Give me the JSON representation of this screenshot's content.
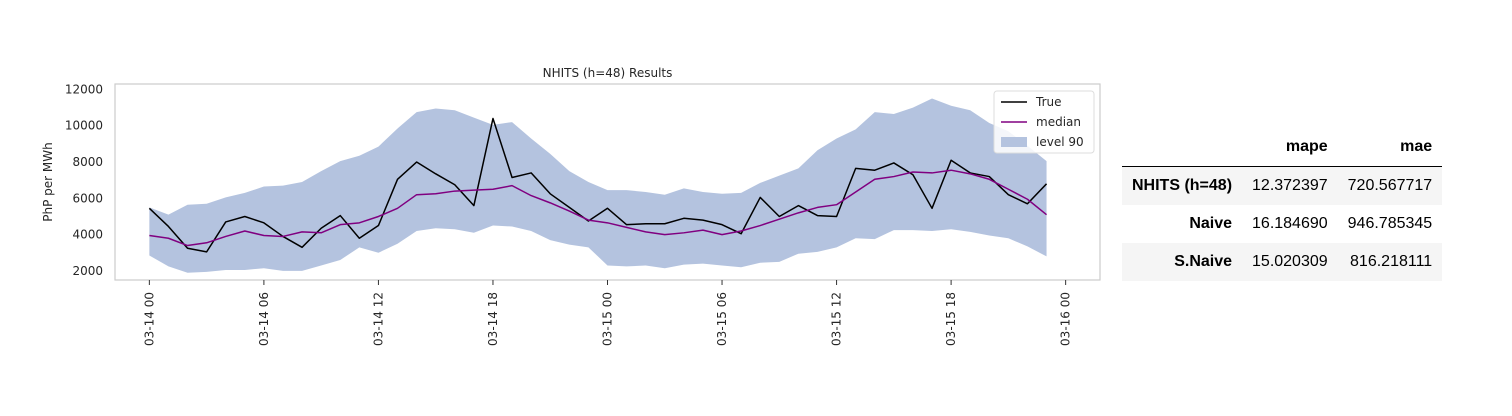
{
  "chart_data": {
    "type": "line",
    "title": "NHITS (h=48) Results",
    "ylabel": "PhP per MWh",
    "xlabel": "",
    "ylim": [
      1500,
      12300
    ],
    "xlim": [
      -1.8,
      49.8
    ],
    "yticks": [
      2000,
      4000,
      6000,
      8000,
      10000,
      12000
    ],
    "xticks": [
      {
        "x": 0,
        "label": "03-14 00"
      },
      {
        "x": 6,
        "label": "03-14 06"
      },
      {
        "x": 12,
        "label": "03-14 12"
      },
      {
        "x": 18,
        "label": "03-14 18"
      },
      {
        "x": 24,
        "label": "03-15 00"
      },
      {
        "x": 30,
        "label": "03-15 06"
      },
      {
        "x": 36,
        "label": "03-15 12"
      },
      {
        "x": 42,
        "label": "03-15 18"
      },
      {
        "x": 48,
        "label": "03-16 00"
      }
    ],
    "grid": false,
    "legend_position": "top-right",
    "series": [
      {
        "name": "True",
        "color": "#000000",
        "values": [
          5450,
          4450,
          3250,
          3050,
          4700,
          5000,
          4650,
          3900,
          3300,
          4350,
          5050,
          3800,
          4500,
          7050,
          8000,
          7350,
          6750,
          5600,
          10400,
          7150,
          7400,
          6250,
          5500,
          4750,
          5450,
          4550,
          4600,
          4600,
          4900,
          4800,
          4550,
          4050,
          6050,
          5000,
          5600,
          5050,
          5000,
          7650,
          7550,
          7950,
          7300,
          5450,
          8100,
          7400,
          7200,
          6200,
          5700,
          6800
        ]
      },
      {
        "name": "median",
        "color": "#800080",
        "values": [
          3950,
          3800,
          3400,
          3550,
          3900,
          4200,
          3950,
          3900,
          4150,
          4100,
          4550,
          4650,
          5000,
          5450,
          6200,
          6250,
          6400,
          6450,
          6500,
          6700,
          6150,
          5750,
          5300,
          4800,
          4650,
          4400,
          4150,
          4000,
          4100,
          4250,
          4000,
          4200,
          4500,
          4850,
          5200,
          5500,
          5650,
          6350,
          7050,
          7200,
          7450,
          7400,
          7550,
          7350,
          7050,
          6500,
          5950,
          5100
        ]
      }
    ],
    "band": {
      "name": "level 90",
      "color": "#b4c3df",
      "lower": [
        2850,
        2250,
        1900,
        1950,
        2050,
        2050,
        2150,
        2000,
        2000,
        2300,
        2600,
        3300,
        3000,
        3500,
        4200,
        4350,
        4300,
        4100,
        4500,
        4450,
        4200,
        3700,
        3450,
        3300,
        2300,
        2250,
        2300,
        2150,
        2350,
        2400,
        2300,
        2200,
        2450,
        2500,
        2950,
        3050,
        3300,
        3800,
        3750,
        4250,
        4250,
        4200,
        4300,
        4150,
        3950,
        3800,
        3350,
        2800
      ],
      "upper": [
        5500,
        5100,
        5650,
        5700,
        6050,
        6300,
        6650,
        6700,
        6900,
        7500,
        8050,
        8350,
        8850,
        9850,
        10750,
        10950,
        10850,
        10450,
        10050,
        10200,
        9300,
        8450,
        7500,
        6900,
        6450,
        6450,
        6350,
        6200,
        6550,
        6350,
        6250,
        6300,
        6850,
        7250,
        7650,
        8650,
        9300,
        9800,
        10750,
        10650,
        11000,
        11500,
        11100,
        10850,
        10150,
        9700,
        8900,
        8050
      ]
    }
  },
  "table": {
    "columns": [
      "",
      "mape",
      "mae"
    ],
    "rows": [
      {
        "name": "NHITS (h=48)",
        "mape": "12.372397",
        "mae": "720.567717"
      },
      {
        "name": "Naive",
        "mape": "16.184690",
        "mae": "946.785345"
      },
      {
        "name": "S.Naive",
        "mape": "15.020309",
        "mae": "816.218111"
      }
    ]
  }
}
